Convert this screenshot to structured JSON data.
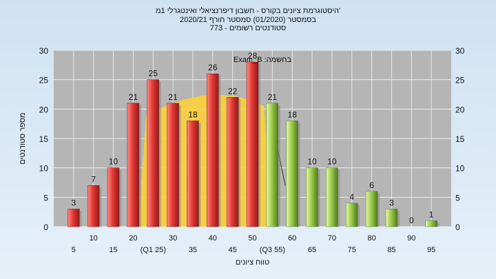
{
  "title_lines": [
    "היסטוגרמת ציונים בקורס - חשבון דיפרנציאלי ואינטגרלי 1מ'",
    "בסמסטר  (01/2020)  סמסטר חורף  2020/21",
    "סטודנטים רשומים - 773"
  ],
  "chart_data": {
    "type": "bar",
    "title": "היסטוגרמת ציונים בקורס - חשבון דיפרנציאלי ואינטגרלי 1מ'",
    "xlabel": "טווח ציונים",
    "ylabel": "מספר סטודנטים",
    "ylim": [
      0,
      30
    ],
    "yticks": [
      0,
      5,
      10,
      15,
      20,
      25,
      30
    ],
    "grid": true,
    "categories": [
      "5",
      "10",
      "15",
      "20",
      "25",
      "30",
      "35",
      "40",
      "45",
      "50",
      "55",
      "60",
      "65",
      "70",
      "75",
      "80",
      "85",
      "90",
      "95"
    ],
    "x_tick_labels": [
      "5",
      "10",
      "15",
      "20",
      "(Q1 25)",
      "30",
      "35",
      "40",
      "45",
      "50",
      "(Q3 55)",
      "60",
      "65",
      "70",
      "75",
      "80",
      "85",
      "90",
      "95"
    ],
    "values": [
      3,
      7,
      10,
      21,
      25,
      21,
      18,
      26,
      22,
      28,
      21,
      18,
      10,
      10,
      4,
      6,
      3,
      0,
      1
    ],
    "bar_colors": [
      "red",
      "red",
      "red",
      "red",
      "red",
      "red",
      "red",
      "red",
      "red",
      "red",
      "green",
      "green",
      "green",
      "green",
      "green",
      "green",
      "green",
      "green",
      "green"
    ],
    "annotation": "Exam_B :בחשמה",
    "colors": {
      "red": "#e53935",
      "green": "#9ccc4a",
      "quartile_band": "#ffd233",
      "plot_bg": "#b5b5b5"
    }
  }
}
